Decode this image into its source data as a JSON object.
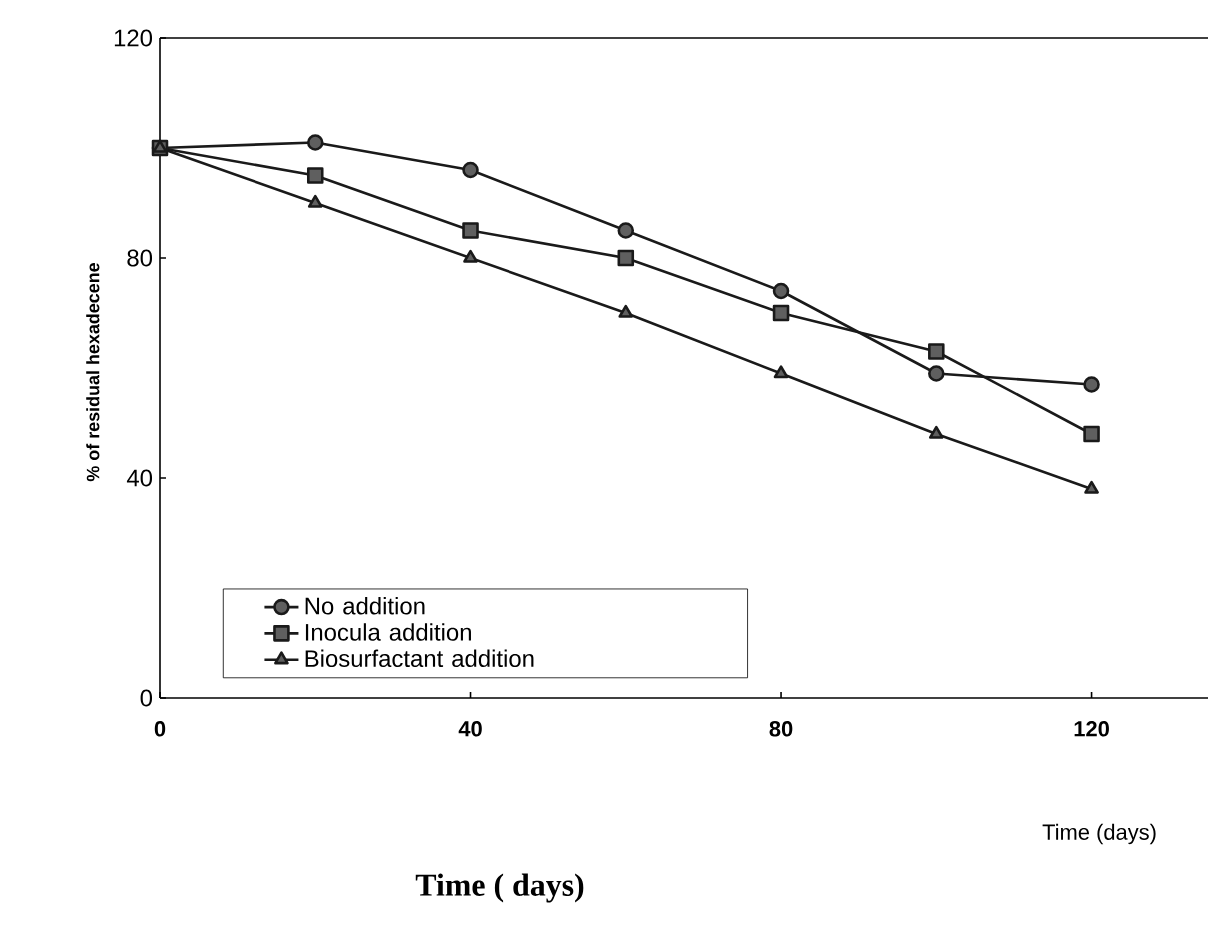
{
  "chart_data": {
    "type": "line",
    "xlabel": "Time (days)",
    "ylabel": "% of residual hexadecene",
    "x": [
      0,
      20,
      40,
      60,
      80,
      100,
      120
    ],
    "series": [
      {
        "name": "No addition",
        "color": "#1a1a1a",
        "marker": "circle",
        "values": [
          100,
          101,
          96,
          85,
          74,
          59,
          57
        ]
      },
      {
        "name": "Inocula addition",
        "color": "#1a1a1a",
        "marker": "square",
        "values": [
          100,
          95,
          85,
          80,
          70,
          63,
          48
        ]
      },
      {
        "name": "Biosurfactant addition",
        "color": "#1a1a1a",
        "marker": "triangle",
        "values": [
          100,
          90,
          80,
          70,
          59,
          48,
          38
        ]
      }
    ],
    "xlim": [
      0,
      135
    ],
    "ylim": [
      0,
      120
    ],
    "xticks": [
      0,
      40,
      80,
      120
    ],
    "yticks": [
      0,
      40,
      80,
      120
    ],
    "grid": false,
    "legend": "bottom left",
    "line_style": "solid",
    "annotations": [
      "Time ( days)"
    ]
  }
}
